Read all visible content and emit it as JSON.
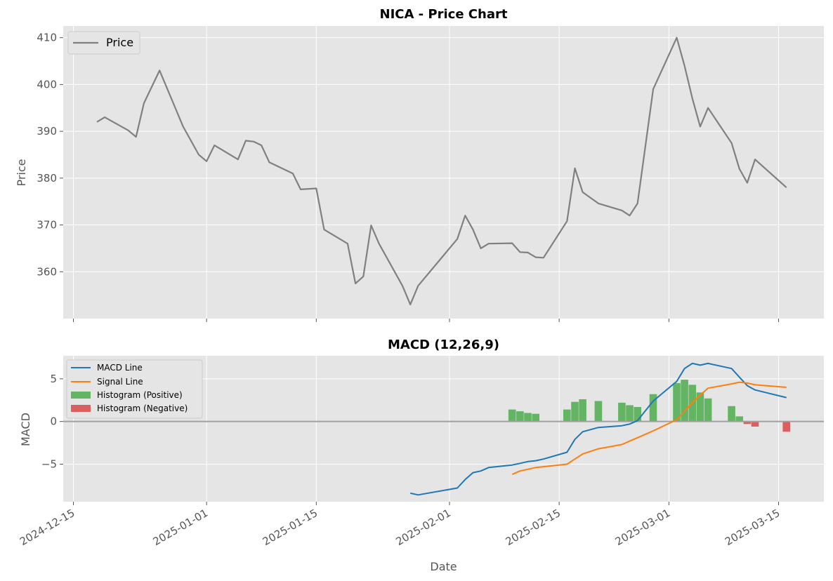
{
  "chart_data": [
    {
      "type": "line",
      "title": "NICA - Price Chart",
      "ylabel": "Price",
      "ylim": [
        350,
        412.5
      ],
      "yticks": [
        360,
        370,
        380,
        390,
        400,
        410
      ],
      "grid": true,
      "legend_placement": "top-left",
      "series": [
        {
          "name": "Price",
          "color": "#808080",
          "points": [
            [
              "2024-12-18",
              392.0
            ],
            [
              "2024-12-19",
              393.0
            ],
            [
              "2024-12-22",
              390.2
            ],
            [
              "2024-12-23",
              388.8
            ],
            [
              "2024-12-24",
              396.0
            ],
            [
              "2024-12-26",
              403.0
            ],
            [
              "2024-12-29",
              391.0
            ],
            [
              "2024-12-31",
              385.0
            ],
            [
              "2025-01-01",
              383.6
            ],
            [
              "2025-01-02",
              387.0
            ],
            [
              "2025-01-05",
              384.0
            ],
            [
              "2025-01-06",
              388.0
            ],
            [
              "2025-01-07",
              387.8
            ],
            [
              "2025-01-08",
              387.0
            ],
            [
              "2025-01-09",
              383.4
            ],
            [
              "2025-01-12",
              381.0
            ],
            [
              "2025-01-13",
              377.6
            ],
            [
              "2025-01-15",
              377.8
            ],
            [
              "2025-01-16",
              369.0
            ],
            [
              "2025-01-19",
              366.0
            ],
            [
              "2025-01-20",
              357.5
            ],
            [
              "2025-01-21",
              359.0
            ],
            [
              "2025-01-22",
              369.9
            ],
            [
              "2025-01-23",
              366.0
            ],
            [
              "2025-01-26",
              357.0
            ],
            [
              "2025-01-27",
              353.0
            ],
            [
              "2025-01-28",
              357.0
            ],
            [
              "2025-02-02",
              367.0
            ],
            [
              "2025-02-03",
              372.0
            ],
            [
              "2025-02-04",
              369.0
            ],
            [
              "2025-02-05",
              365.0
            ],
            [
              "2025-02-06",
              366.0
            ],
            [
              "2025-02-09",
              366.1
            ],
            [
              "2025-02-10",
              364.2
            ],
            [
              "2025-02-11",
              364.1
            ],
            [
              "2025-02-12",
              363.1
            ],
            [
              "2025-02-13",
              363.0
            ],
            [
              "2025-02-16",
              370.8
            ],
            [
              "2025-02-17",
              382.1
            ],
            [
              "2025-02-18",
              377.0
            ],
            [
              "2025-02-20",
              374.6
            ],
            [
              "2025-02-23",
              373.1
            ],
            [
              "2025-02-24",
              372.0
            ],
            [
              "2025-02-25",
              374.6
            ],
            [
              "2025-02-27",
              399.0
            ],
            [
              "2025-03-02",
              410.0
            ],
            [
              "2025-03-03",
              404.0
            ],
            [
              "2025-03-04",
              397.0
            ],
            [
              "2025-03-05",
              391.0
            ],
            [
              "2025-03-06",
              395.0
            ],
            [
              "2025-03-09",
              387.5
            ],
            [
              "2025-03-10",
              382.0
            ],
            [
              "2025-03-11",
              379.0
            ],
            [
              "2025-03-12",
              384.0
            ],
            [
              "2025-03-16",
              378.0
            ]
          ]
        }
      ]
    },
    {
      "type": "line",
      "title": "MACD (12,26,9)",
      "xlabel": "Date",
      "ylabel": "MACD",
      "ylim": [
        -9.4,
        7.7
      ],
      "yticks": [
        -5,
        0,
        5
      ],
      "zero_line": true,
      "grid": true,
      "legend_placement": "top-left",
      "xticks": [
        "2024-12-15",
        "2025-01-01",
        "2025-01-15",
        "2025-02-01",
        "2025-02-15",
        "2025-03-01",
        "2025-03-15"
      ],
      "series": [
        {
          "name": "MACD Line",
          "color": "#1f77b4",
          "points": [
            [
              "2025-01-27",
              -8.4
            ],
            [
              "2025-01-28",
              -8.6
            ],
            [
              "2025-02-02",
              -7.8
            ],
            [
              "2025-02-03",
              -6.8
            ],
            [
              "2025-02-04",
              -6.0
            ],
            [
              "2025-02-05",
              -5.8
            ],
            [
              "2025-02-06",
              -5.4
            ],
            [
              "2025-02-09",
              -5.1
            ],
            [
              "2025-02-10",
              -4.9
            ],
            [
              "2025-02-11",
              -4.7
            ],
            [
              "2025-02-12",
              -4.6
            ],
            [
              "2025-02-13",
              -4.4
            ],
            [
              "2025-02-16",
              -3.6
            ],
            [
              "2025-02-17",
              -2.1
            ],
            [
              "2025-02-18",
              -1.2
            ],
            [
              "2025-02-20",
              -0.7
            ],
            [
              "2025-02-23",
              -0.5
            ],
            [
              "2025-02-24",
              -0.3
            ],
            [
              "2025-02-25",
              0.1
            ],
            [
              "2025-02-27",
              2.4
            ],
            [
              "2025-03-02",
              4.7
            ],
            [
              "2025-03-03",
              6.2
            ],
            [
              "2025-03-04",
              6.8
            ],
            [
              "2025-03-05",
              6.6
            ],
            [
              "2025-03-06",
              6.8
            ],
            [
              "2025-03-09",
              6.2
            ],
            [
              "2025-03-10",
              5.2
            ],
            [
              "2025-03-11",
              4.2
            ],
            [
              "2025-03-12",
              3.7
            ],
            [
              "2025-03-16",
              2.8
            ]
          ]
        },
        {
          "name": "Signal Line",
          "color": "#ff7f0e",
          "points": [
            [
              "2025-02-09",
              -6.2
            ],
            [
              "2025-02-10",
              -5.8
            ],
            [
              "2025-02-11",
              -5.6
            ],
            [
              "2025-02-12",
              -5.4
            ],
            [
              "2025-02-13",
              -5.3
            ],
            [
              "2025-02-16",
              -5.0
            ],
            [
              "2025-02-17",
              -4.4
            ],
            [
              "2025-02-18",
              -3.8
            ],
            [
              "2025-02-20",
              -3.2
            ],
            [
              "2025-02-23",
              -2.7
            ],
            [
              "2025-02-24",
              -2.3
            ],
            [
              "2025-02-25",
              -1.9
            ],
            [
              "2025-02-27",
              -1.1
            ],
            [
              "2025-03-02",
              0.2
            ],
            [
              "2025-03-03",
              1.2
            ],
            [
              "2025-03-04",
              2.2
            ],
            [
              "2025-03-05",
              3.1
            ],
            [
              "2025-03-06",
              3.9
            ],
            [
              "2025-03-09",
              4.4
            ],
            [
              "2025-03-10",
              4.6
            ],
            [
              "2025-03-11",
              4.5
            ],
            [
              "2025-03-12",
              4.3
            ],
            [
              "2025-03-16",
              4.0
            ]
          ]
        }
      ],
      "histogram": {
        "positive_name": "Histogram (Positive)",
        "positive_color": "#2ca02c",
        "negative_name": "Histogram (Negative)",
        "negative_color": "#d62728",
        "bars": [
          [
            "2025-02-09",
            1.4
          ],
          [
            "2025-02-10",
            1.2
          ],
          [
            "2025-02-11",
            1.0
          ],
          [
            "2025-02-12",
            0.9
          ],
          [
            "2025-02-16",
            1.4
          ],
          [
            "2025-02-17",
            2.3
          ],
          [
            "2025-02-18",
            2.6
          ],
          [
            "2025-02-20",
            2.4
          ],
          [
            "2025-02-23",
            2.2
          ],
          [
            "2025-02-24",
            1.9
          ],
          [
            "2025-02-25",
            1.7
          ],
          [
            "2025-02-27",
            3.2
          ],
          [
            "2025-03-02",
            4.5
          ],
          [
            "2025-03-03",
            4.9
          ],
          [
            "2025-03-04",
            4.3
          ],
          [
            "2025-03-05",
            3.4
          ],
          [
            "2025-03-06",
            2.7
          ],
          [
            "2025-03-09",
            1.8
          ],
          [
            "2025-03-10",
            0.6
          ],
          [
            "2025-03-11",
            -0.3
          ],
          [
            "2025-03-12",
            -0.6
          ],
          [
            "2025-03-16",
            -1.2
          ]
        ]
      }
    }
  ]
}
